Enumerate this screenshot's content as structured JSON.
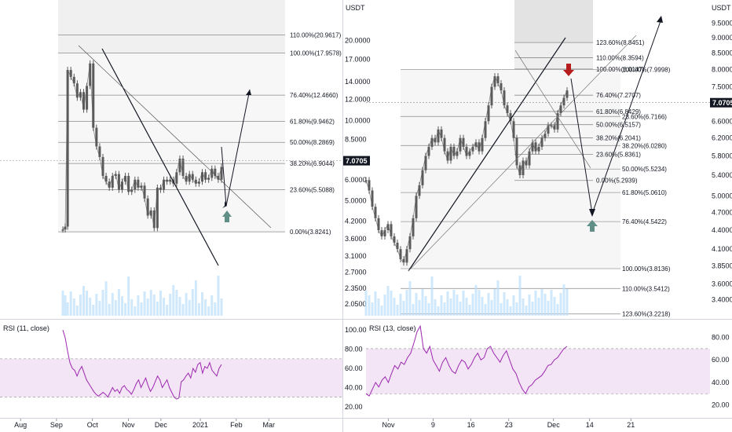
{
  "quote_currency": "USDT",
  "current_price": "7.0705",
  "colors": {
    "candle": "#5b5b5b",
    "rsi_line": "#9c27b0",
    "rsi_band": "#f3e5f5",
    "volume": "#bbdefb",
    "down_arrow": "#b71c1c",
    "up_arrow": "#5f8f87",
    "fib_zone": "#f0f0f0",
    "price_tag": "#131722"
  },
  "chart_data": [
    {
      "type": "candlestick",
      "title": "",
      "quote": "USDT",
      "y_scale": "log",
      "ylim": [
        1.85,
        28
      ],
      "y_ticks": [
        "20.0000",
        "17.0000",
        "14.0000",
        "12.0000",
        "10.0000",
        "8.5000",
        "7.0705",
        "6.0000",
        "5.0000",
        "4.2000",
        "3.6000",
        "3.1000",
        "2.7000",
        "2.3500",
        "2.0500"
      ],
      "x_ticks": [
        "Aug",
        "Sep",
        "Oct",
        "Nov",
        "Dec",
        "2021",
        "Feb",
        "Mar"
      ],
      "current_price": "7.0705",
      "series": [
        {
          "type": "line",
          "x": [
            0,
            3,
            6,
            10,
            14,
            18,
            22,
            26,
            30,
            34,
            38,
            42,
            46,
            50,
            54,
            58,
            62,
            66,
            70,
            74,
            78,
            82,
            86,
            90,
            94,
            98,
            102,
            106,
            110,
            114,
            118,
            122,
            126,
            130,
            134,
            138,
            142,
            146,
            150,
            154,
            158,
            162,
            166,
            170,
            174,
            178,
            182,
            186,
            190,
            194,
            198
          ],
          "y": [
            3.9,
            4.0,
            15.5,
            14.6,
            13.8,
            12.2,
            12.8,
            11.0,
            13.5,
            16.4,
            9.4,
            8.0,
            7.3,
            6.2,
            5.9,
            5.6,
            6.2,
            6.3,
            5.5,
            5.9,
            6.2,
            5.4,
            5.5,
            6.0,
            5.6,
            5.7,
            5.1,
            4.4,
            4.6,
            3.95,
            5.6,
            5.5,
            6.0,
            5.9,
            6.0,
            5.8,
            6.4,
            7.2,
            6.2,
            5.9,
            6.3,
            6.0,
            5.8,
            5.9,
            6.4,
            6.0,
            6.1,
            6.6,
            6.2,
            6.0,
            6.7
          ]
        }
      ],
      "fib_levels": [
        {
          "label": "110.00%(20.9617)",
          "value": 20.9617
        },
        {
          "label": "100.00%(17.9578)",
          "value": 17.9578
        },
        {
          "label": "76.40%(12.4660)",
          "value": 12.466
        },
        {
          "label": "61.80%(9.9462)",
          "value": 9.9462
        },
        {
          "label": "50.00%(8.2869)",
          "value": 8.2869
        },
        {
          "label": "38.20%(6.9044)",
          "value": 6.9044
        },
        {
          "label": "23.60%(5.5088)",
          "value": 5.5088
        },
        {
          "label": "0.00%(3.8241)",
          "value": 3.8241
        }
      ],
      "rsi": {
        "label": "RSI (11, close)",
        "ylim": [
          10,
          110
        ],
        "band": [
          30,
          70
        ],
        "y_ticks": [
          "100.00",
          "80.00",
          "60.00",
          "40.00",
          "20.00"
        ],
        "values": [
          100,
          92,
          78,
          66,
          60,
          58,
          52,
          58,
          62,
          55,
          48,
          44,
          40,
          36,
          33,
          31,
          33,
          35,
          33,
          30,
          35,
          40,
          36,
          38,
          34,
          40,
          42,
          38,
          36,
          33,
          38,
          44,
          48,
          40,
          45,
          50,
          42,
          36,
          40,
          46,
          52,
          48,
          40,
          44,
          48,
          40,
          35,
          30,
          28,
          29,
          46,
          48,
          52,
          55,
          50,
          60,
          56,
          64,
          66,
          55,
          62,
          60,
          66,
          58,
          55,
          52,
          60,
          64
        ]
      }
    },
    {
      "type": "candlestick",
      "title": "",
      "quote": "USDT",
      "y_scale": "log",
      "ylim": [
        3.2,
        10.3
      ],
      "y_ticks": [
        "USDT",
        "9.5000",
        "9.0000",
        "8.5000",
        "8.0000",
        "7.5000",
        "7.0705",
        "6.6000",
        "6.2000",
        "5.8000",
        "5.4000",
        "5.0000",
        "4.7000",
        "4.4000",
        "4.1000",
        "3.8500",
        "3.6000",
        "3.4000"
      ],
      "x_ticks": [
        "Nov",
        "9",
        "16",
        "23",
        "Dec",
        "14",
        "21"
      ],
      "current_price": "7.0705",
      "series": [
        {
          "type": "line",
          "x": [
            0,
            4,
            8,
            12,
            16,
            20,
            24,
            28,
            32,
            36,
            40,
            44,
            48,
            52,
            56,
            60,
            64,
            68,
            72,
            76,
            80,
            84,
            88,
            92,
            96,
            100,
            104,
            108,
            112,
            116,
            120,
            124,
            128,
            132,
            136,
            140,
            144,
            148,
            152,
            156,
            160,
            164,
            168,
            172,
            176,
            180,
            184,
            188,
            192,
            196,
            200,
            204,
            208,
            212,
            216,
            220,
            224,
            228,
            232,
            236,
            240,
            244,
            248,
            252,
            256
          ],
          "y": [
            5.3,
            5.1,
            4.8,
            4.6,
            4.4,
            4.3,
            4.4,
            4.5,
            4.3,
            4.2,
            4.1,
            3.95,
            3.9,
            4.1,
            4.3,
            4.6,
            5.0,
            5.2,
            5.5,
            5.8,
            6.0,
            6.2,
            6.1,
            6.4,
            6.2,
            5.9,
            5.7,
            6.0,
            5.8,
            5.9,
            6.2,
            6.0,
            5.8,
            5.9,
            6.0,
            6.1,
            5.9,
            6.2,
            6.6,
            7.0,
            7.5,
            7.8,
            7.6,
            7.4,
            7.0,
            6.8,
            6.6,
            6.2,
            5.6,
            5.4,
            5.7,
            5.6,
            5.9,
            6.1,
            5.9,
            6.0,
            6.2,
            6.3,
            6.5,
            6.5,
            6.4,
            6.8,
            7.0,
            7.2,
            7.4
          ]
        }
      ],
      "fib_sets": [
        [
          {
            "label": "123.60%(8.8451)",
            "value": 8.8451
          },
          {
            "label": "110.00%(8.3594)",
            "value": 8.3594
          },
          {
            "label": "100.00%(8.0147)",
            "value": 8.0147
          },
          {
            "label": "76.40%(7.2707)",
            "value": 7.2707
          },
          {
            "label": "61.80%(6.8429)",
            "value": 6.8429
          },
          {
            "label": "50.00%(6.5157)",
            "value": 6.5157
          },
          {
            "label": "38.20%(6.2041)",
            "value": 6.2041
          },
          {
            "label": "23.60%(5.8361)",
            "value": 5.8361
          },
          {
            "label": "0.00%(5.2939)",
            "value": 5.2939
          }
        ],
        [
          {
            "label": "100.00%(7.9998)",
            "value": 7.9998
          },
          {
            "label": "23.60%(6.7166)",
            "value": 6.7166
          },
          {
            "label": "38.20%(6.0280)",
            "value": 6.028
          },
          {
            "label": "50.00%(5.5234)",
            "value": 5.5234
          },
          {
            "label": "61.80%(5.0610)",
            "value": 5.061
          },
          {
            "label": "76.40%(4.5422)",
            "value": 4.5422
          },
          {
            "label": "100.00%(3.8136)",
            "value": 3.8136
          },
          {
            "label": "110.00%(3.5412)",
            "value": 3.5412
          },
          {
            "label": "123.60%(3.2218)",
            "value": 3.2218
          }
        ]
      ],
      "rsi": {
        "label": "RSI (13, close)",
        "ylim": [
          10,
          95
        ],
        "band": [
          30,
          70
        ],
        "y_ticks": [
          "80.00",
          "60.00",
          "40.00",
          "20.00"
        ],
        "values": [
          30,
          28,
          34,
          40,
          36,
          42,
          45,
          40,
          48,
          55,
          52,
          58,
          56,
          62,
          66,
          75,
          85,
          90,
          70,
          66,
          72,
          60,
          55,
          50,
          58,
          62,
          55,
          50,
          48,
          55,
          60,
          58,
          52,
          56,
          62,
          66,
          60,
          62,
          70,
          72,
          66,
          62,
          58,
          64,
          68,
          60,
          52,
          48,
          40,
          34,
          30,
          36,
          38,
          42,
          44,
          46,
          50,
          55,
          56,
          60,
          62,
          66,
          70,
          72
        ]
      }
    }
  ]
}
